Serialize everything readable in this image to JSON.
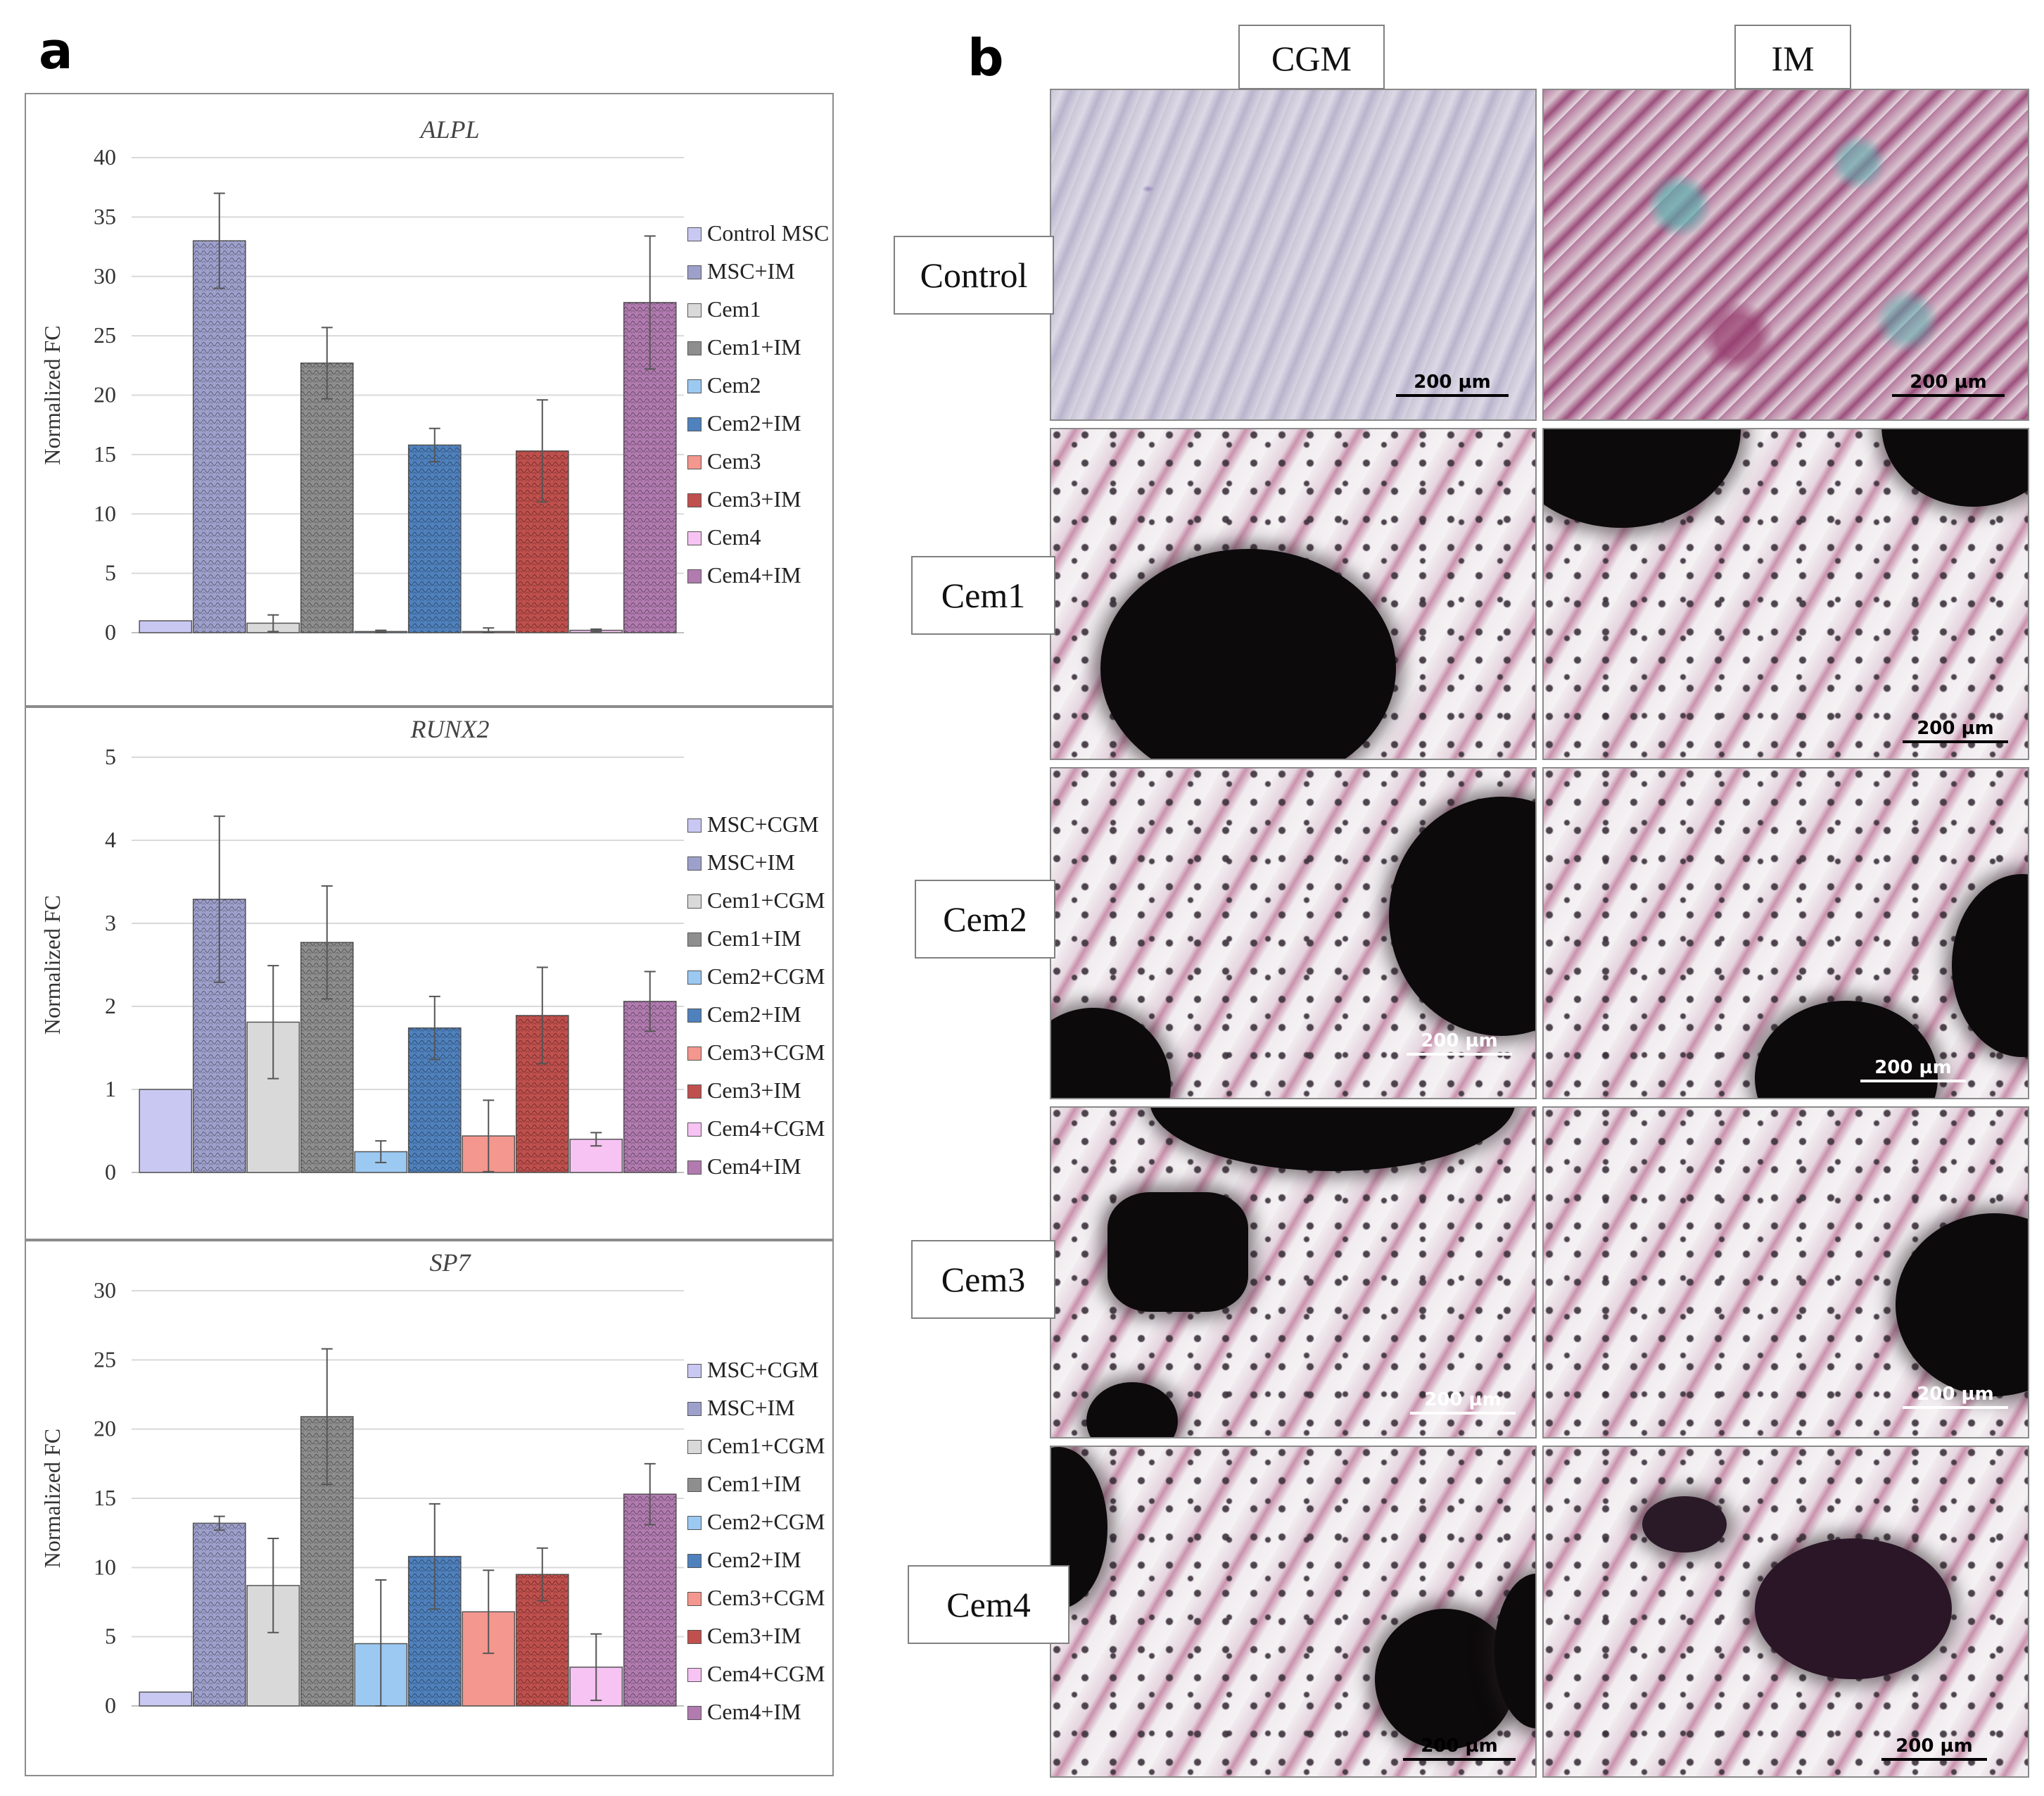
{
  "panel_a_label": "a",
  "panel_b_label": "b",
  "chart_data": [
    {
      "type": "bar",
      "title": "ALPL",
      "ylabel": "Normalized FC",
      "ylim": [
        0,
        40
      ],
      "yticks": [
        "0",
        "5",
        "10",
        "15",
        "20",
        "25",
        "30",
        "35",
        "40"
      ],
      "categories": [
        "Control MSC",
        "MSC+IM",
        "Cem1",
        "Cem1+IM",
        "Cem2",
        "Cem2+IM",
        "Cem3",
        "Cem3+IM",
        "Cem4",
        "Cem4+IM"
      ],
      "values": [
        1.0,
        33.0,
        0.8,
        22.7,
        0.1,
        15.8,
        0.1,
        15.3,
        0.2,
        27.8
      ],
      "errors": [
        0.0,
        4.0,
        0.7,
        3.0,
        0.1,
        1.4,
        0.3,
        4.3,
        0.1,
        5.6
      ],
      "legend": [
        "Control MSC",
        "MSC+IM",
        "Cem1",
        "Cem1+IM",
        "Cem2",
        "Cem2+IM",
        "Cem3",
        "Cem3+IM",
        "Cem4",
        "Cem4+IM"
      ],
      "legend_position": "right",
      "grid": true
    },
    {
      "type": "bar",
      "title": "RUNX2",
      "ylabel": "Normalized FC",
      "ylim": [
        0,
        5
      ],
      "yticks": [
        "0",
        "1",
        "2",
        "3",
        "4",
        "5"
      ],
      "categories": [
        "MSC+CGM",
        "MSC+IM",
        "Cem1+CGM",
        "Cem1+IM",
        "Cem2+CGM",
        "Cem2+IM",
        "Cem3+CGM",
        "Cem3+IM",
        "Cem4+CGM",
        "Cem4+IM"
      ],
      "values": [
        1.0,
        3.29,
        1.81,
        2.77,
        0.25,
        1.74,
        0.44,
        1.89,
        0.4,
        2.06
      ],
      "errors": [
        0.0,
        1.0,
        0.68,
        0.68,
        0.13,
        0.38,
        0.43,
        0.58,
        0.08,
        0.36
      ],
      "legend": [
        "MSC+CGM",
        "MSC+IM",
        "Cem1+CGM",
        "Cem1+IM",
        "Cem2+CGM",
        "Cem2+IM",
        "Cem3+CGM",
        "Cem3+IM",
        "Cem4+CGM",
        "Cem4+IM"
      ],
      "legend_position": "right",
      "grid": true
    },
    {
      "type": "bar",
      "title": "SP7",
      "ylabel": "Normalized FC",
      "ylim": [
        0,
        30
      ],
      "yticks": [
        "0",
        "5",
        "10",
        "15",
        "20",
        "25",
        "30"
      ],
      "categories": [
        "MSC+CGM",
        "MSC+IM",
        "Cem1+CGM",
        "Cem1+IM",
        "Cem2+CGM",
        "Cem2+IM",
        "Cem3+CGM",
        "Cem3+IM",
        "Cem4+CGM",
        "Cem4+IM"
      ],
      "values": [
        1.0,
        13.2,
        8.7,
        20.9,
        4.5,
        10.8,
        6.8,
        9.5,
        2.8,
        15.3
      ],
      "errors": [
        0.0,
        0.5,
        3.4,
        4.9,
        4.6,
        3.8,
        3.0,
        1.9,
        2.4,
        2.2
      ],
      "legend": [
        "MSC+CGM",
        "MSC+IM",
        "Cem1+CGM",
        "Cem1+IM",
        "Cem2+CGM",
        "Cem2+IM",
        "Cem3+CGM",
        "Cem3+IM",
        "Cem4+CGM",
        "Cem4+IM"
      ],
      "legend_position": "right",
      "grid": true
    }
  ],
  "colors": {
    "control_cgm": "#c9c8f2",
    "control_im": "#9ea0cc",
    "cem1_cgm": "#d9d9d9",
    "cem1_im": "#8e8e8e",
    "cem2_cgm": "#9cc9f2",
    "cem2_im": "#4f81bd",
    "cem3_cgm": "#f4978f",
    "cem3_im": "#c0504d",
    "cem4_cgm": "#f6c3f3",
    "cem4_im": "#b17bb0"
  },
  "panel_b": {
    "column_labels": [
      "CGM",
      "IM"
    ],
    "row_labels": [
      "Control",
      "Cem1",
      "Cem2",
      "Cem3",
      "Cem4"
    ],
    "scale_bar_label": "200 µm"
  }
}
